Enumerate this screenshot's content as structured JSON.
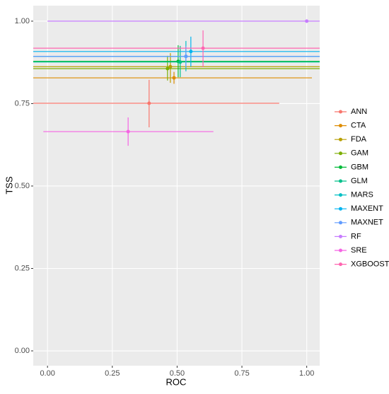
{
  "chart_data": {
    "type": "scatter",
    "x_label": "ROC",
    "y_label": "TSS",
    "xlim": [
      -0.055,
      1.05
    ],
    "ylim": [
      -0.045,
      1.047
    ],
    "xticks": [
      {
        "value": 0,
        "label": "0.00"
      },
      {
        "value": 0.25,
        "label": "0.25"
      },
      {
        "value": 0.5,
        "label": "0.50"
      },
      {
        "value": 0.75,
        "label": "0.75"
      },
      {
        "value": 1,
        "label": "1.00"
      }
    ],
    "yticks": [
      {
        "value": 0,
        "label": "0.00"
      },
      {
        "value": 0.25,
        "label": "0.25"
      },
      {
        "value": 0.5,
        "label": "0.50"
      },
      {
        "value": 0.75,
        "label": "0.75"
      },
      {
        "value": 1,
        "label": "1.00"
      }
    ],
    "grid": true,
    "legend": "right",
    "series": [
      {
        "name": "ANN",
        "color": "#F8766D",
        "x": 0.392,
        "y": 0.751,
        "xmin": -0.11,
        "xmax": 0.894,
        "ymin": 0.678,
        "ymax": 0.822
      },
      {
        "name": "CTA",
        "color": "#DE8C00",
        "x": 0.488,
        "y": 0.828,
        "xmin": -0.06,
        "xmax": 1.02,
        "ymin": 0.81,
        "ymax": 0.846
      },
      {
        "name": "FDA",
        "color": "#B79F00",
        "x": 0.474,
        "y": 0.862,
        "xmin": -0.2,
        "xmax": 1.2,
        "ymin": 0.813,
        "ymax": 0.903
      },
      {
        "name": "GAM",
        "color": "#7CAE00",
        "x": 0.463,
        "y": 0.856,
        "xmin": -0.2,
        "xmax": 1.2,
        "ymin": 0.82,
        "ymax": 0.895
      },
      {
        "name": "GBM",
        "color": "#00BA38",
        "x": 0.504,
        "y": 0.878,
        "xmin": -0.2,
        "xmax": 1.2,
        "ymin": 0.83,
        "ymax": 0.927
      },
      {
        "name": "GLM",
        "color": "#00C08B",
        "x": 0.512,
        "y": 0.876,
        "xmin": -0.2,
        "xmax": 1.2,
        "ymin": 0.83,
        "ymax": 0.925
      },
      {
        "name": "MARS",
        "color": "#00BFC4",
        "x": 0.534,
        "y": 0.893,
        "xmin": -0.2,
        "xmax": 1.2,
        "ymin": 0.848,
        "ymax": 0.94
      },
      {
        "name": "MAXENT",
        "color": "#00B4F0",
        "x": 0.553,
        "y": 0.908,
        "xmin": -0.2,
        "xmax": 1.2,
        "ymin": 0.862,
        "ymax": 0.953
      },
      {
        "name": "MAXNET",
        "color": "#619CFF",
        "x": 0.534,
        "y": 0.893,
        "xmin": -0.2,
        "xmax": 1.2,
        "ymin": 0.86,
        "ymax": 0.925
      },
      {
        "name": "RF",
        "color": "#C77CFF",
        "x": 1.0,
        "y": 1.0,
        "xmin": 0.0,
        "xmax": 1.2,
        "ymin": 1.0,
        "ymax": 1.0
      },
      {
        "name": "SRE",
        "color": "#F564E3",
        "x": 0.311,
        "y": 0.665,
        "xmin": -0.016,
        "xmax": 0.64,
        "ymin": 0.622,
        "ymax": 0.708
      },
      {
        "name": "XGBOOST",
        "color": "#FF64B0",
        "x": 0.6,
        "y": 0.918,
        "xmin": -0.2,
        "xmax": 1.2,
        "ymin": 0.861,
        "ymax": 0.972
      }
    ]
  }
}
